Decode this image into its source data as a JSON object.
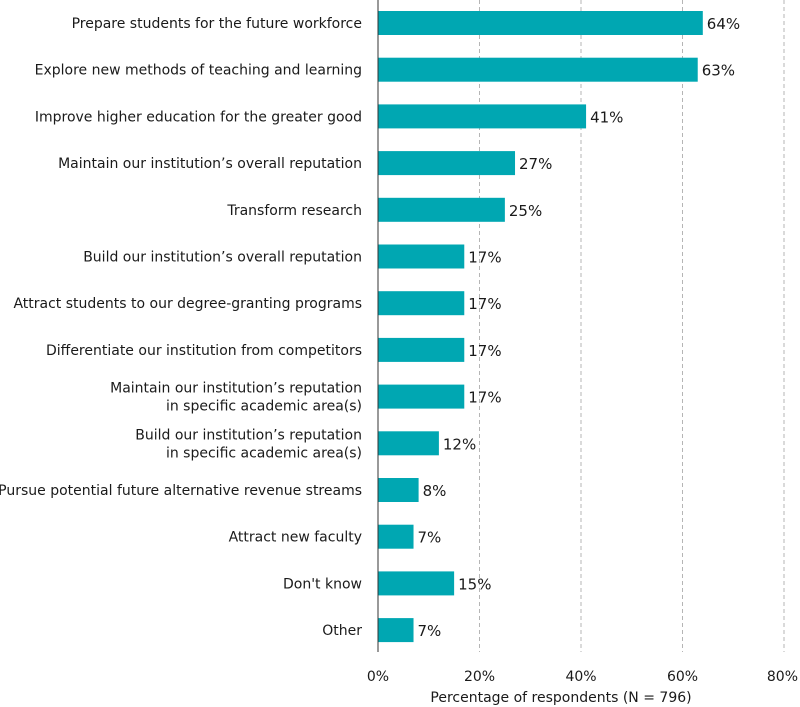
{
  "chart_data": {
    "type": "bar",
    "orientation": "horizontal",
    "categories": [
      [
        "Prepare students for the future workforce"
      ],
      [
        "Explore new methods of teaching and learning"
      ],
      [
        "Improve higher education for the greater good"
      ],
      [
        "Maintain our institution’s overall reputation"
      ],
      [
        "Transform research"
      ],
      [
        "Build our institution’s overall reputation"
      ],
      [
        "Attract students to our degree-granting programs"
      ],
      [
        "Differentiate our institution from competitors"
      ],
      [
        "Maintain our institution’s reputation",
        "in specific academic area(s)"
      ],
      [
        "Build our institution’s reputation",
        "in specific academic area(s)"
      ],
      [
        "Pursue potential future alternative revenue streams"
      ],
      [
        "Attract new faculty"
      ],
      [
        "Don't know"
      ],
      [
        "Other"
      ]
    ],
    "values": [
      64,
      63,
      41,
      27,
      25,
      17,
      17,
      17,
      17,
      12,
      8,
      7,
      15,
      7
    ],
    "value_labels": [
      "64%",
      "63%",
      "41%",
      "27%",
      "25%",
      "17%",
      "17%",
      "17%",
      "17%",
      "12%",
      "8%",
      "7%",
      "15%",
      "7%"
    ],
    "xticks": [
      0,
      20,
      40,
      60,
      80
    ],
    "xtick_labels": [
      "0%",
      "20%",
      "40%",
      "60%",
      "80%"
    ],
    "xlim": [
      0,
      80
    ],
    "xlabel": "Percentage of respondents (N = 796)",
    "bar_color": "#00a7b2",
    "grid": "vertical dashed"
  }
}
